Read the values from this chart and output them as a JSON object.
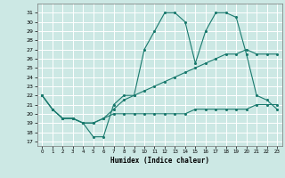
{
  "xlabel": "Humidex (Indice chaleur)",
  "bg_color": "#cce8e4",
  "grid_color": "#ffffff",
  "line_color": "#1a7a6e",
  "xlim": [
    -0.5,
    23.5
  ],
  "ylim": [
    16.5,
    32.0
  ],
  "yticks": [
    17,
    18,
    19,
    20,
    21,
    22,
    23,
    24,
    25,
    26,
    27,
    28,
    29,
    30,
    31
  ],
  "xticks": [
    0,
    1,
    2,
    3,
    4,
    5,
    6,
    7,
    8,
    9,
    10,
    11,
    12,
    13,
    14,
    15,
    16,
    17,
    18,
    19,
    20,
    21,
    22,
    23
  ],
  "series": [
    {
      "x": [
        0,
        1,
        2,
        3,
        4,
        5,
        6,
        7,
        8,
        9,
        10,
        11,
        12,
        13,
        14,
        15,
        16,
        17,
        18,
        19,
        20,
        21,
        22,
        23
      ],
      "y": [
        22,
        20.5,
        19.5,
        19.5,
        19.0,
        17.5,
        17.5,
        21.0,
        22.0,
        22.0,
        27.0,
        29.0,
        31.0,
        31.0,
        30.0,
        25.5,
        29.0,
        31.0,
        31.0,
        30.5,
        26.5,
        22.0,
        21.5,
        20.5
      ]
    },
    {
      "x": [
        0,
        1,
        2,
        3,
        4,
        5,
        6,
        7,
        8,
        9,
        10,
        11,
        12,
        13,
        14,
        15,
        16,
        17,
        18,
        19,
        20,
        21,
        22,
        23
      ],
      "y": [
        22,
        20.5,
        19.5,
        19.5,
        19.0,
        19.0,
        19.5,
        20.5,
        21.5,
        22.0,
        22.5,
        23.0,
        23.5,
        24.0,
        24.5,
        25.0,
        25.5,
        26.0,
        26.5,
        26.5,
        27.0,
        26.5,
        26.5,
        26.5
      ]
    },
    {
      "x": [
        0,
        1,
        2,
        3,
        4,
        5,
        6,
        7,
        8,
        9,
        10,
        11,
        12,
        13,
        14,
        15,
        16,
        17,
        18,
        19,
        20,
        21,
        22,
        23
      ],
      "y": [
        22,
        20.5,
        19.5,
        19.5,
        19.0,
        19.0,
        19.5,
        20.0,
        20.0,
        20.0,
        20.0,
        20.0,
        20.0,
        20.0,
        20.0,
        20.5,
        20.5,
        20.5,
        20.5,
        20.5,
        20.5,
        21.0,
        21.0,
        21.0
      ]
    }
  ]
}
